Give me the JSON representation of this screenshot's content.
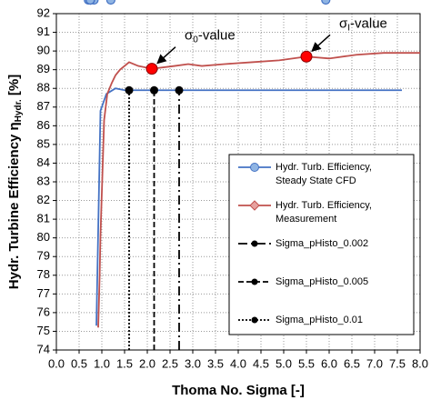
{
  "chart_data": {
    "type": "line",
    "x_label": "Thoma No. Sigma [-]",
    "y_label": {
      "text": "Hydr. Turbine Efficiency η",
      "subscript": "Hydr.",
      "suffix": " [%]"
    },
    "xlim": [
      0,
      8
    ],
    "ylim": [
      74,
      92
    ],
    "xticks": [
      {
        "value": 0,
        "label": "0.0"
      },
      0.5,
      {
        "value": 1,
        "label": "1.0"
      },
      1.5,
      {
        "value": 2,
        "label": "2.0"
      },
      2.5,
      {
        "value": 3,
        "label": "3.0"
      },
      3.5,
      {
        "value": 4,
        "label": "4.0"
      },
      4.5,
      {
        "value": 5,
        "label": "5.0"
      },
      5.5,
      {
        "value": 6,
        "label": "6.0"
      },
      6.5,
      {
        "value": 7,
        "label": "7.0"
      },
      7.5,
      {
        "value": 8,
        "label": "8.0"
      }
    ],
    "yticks": [
      74,
      75,
      76,
      77,
      78,
      79,
      80,
      81,
      82,
      83,
      84,
      85,
      86,
      87,
      88,
      89,
      90,
      91,
      92
    ],
    "grid": true,
    "series": [
      {
        "name": [
          "Hydr. Turb. Efficiency,",
          "Steady State CFD"
        ],
        "color": "#4472c4",
        "marker_fill": "#8fb4e3",
        "marker": "circle",
        "x": [
          0.88,
          0.97,
          1.1,
          1.3,
          1.5,
          1.75,
          2.0,
          2.3,
          2.7,
          3.0,
          4.0,
          5.5,
          7.6
        ],
        "values": [
          75.3,
          86.8,
          87.7,
          88.0,
          87.9,
          87.9,
          87.9,
          87.9,
          87.9,
          87.9,
          87.9,
          87.9,
          87.9
        ]
      },
      {
        "name": [
          "Hydr. Turb. Efficiency,",
          "Measurement"
        ],
        "color": "#c0504d",
        "marker_fill": "#e6a19f",
        "marker": "diamond",
        "x": [
          0.92,
          0.95,
          0.97,
          1.05,
          1.12,
          1.22,
          1.3,
          1.4,
          1.6,
          1.8,
          2.1,
          2.6,
          2.9,
          3.2,
          3.7,
          4.3,
          4.9,
          5.5,
          6.0,
          6.6,
          7.2,
          8.0
        ],
        "values": [
          75.2,
          77.8,
          80.1,
          86.3,
          87.7,
          88.3,
          88.7,
          89.0,
          89.4,
          89.2,
          89.05,
          89.2,
          89.3,
          89.2,
          89.3,
          89.4,
          89.5,
          89.7,
          89.6,
          89.8,
          89.9,
          89.9
        ]
      }
    ],
    "vlines": [
      {
        "name": "Sigma_pHisto_0.002",
        "x": 2.7,
        "y": 87.9,
        "dash": "10 4 2 4"
      },
      {
        "name": "Sigma_pHisto_0.005",
        "x": 2.15,
        "y": 87.9,
        "dash": "6 3"
      },
      {
        "name": "Sigma_pHisto_0.01",
        "x": 1.6,
        "y": 87.9,
        "dash": "2 2"
      }
    ],
    "annotations": [
      {
        "text": "σ",
        "subscript": "0",
        "suffix": "-value",
        "x": 2.1,
        "y": 89.05,
        "color": "#ff0000"
      },
      {
        "text": "σ",
        "subscript": "I",
        "suffix": "-value",
        "x": 5.5,
        "y": 89.7,
        "color": "#ff0000"
      }
    ]
  }
}
